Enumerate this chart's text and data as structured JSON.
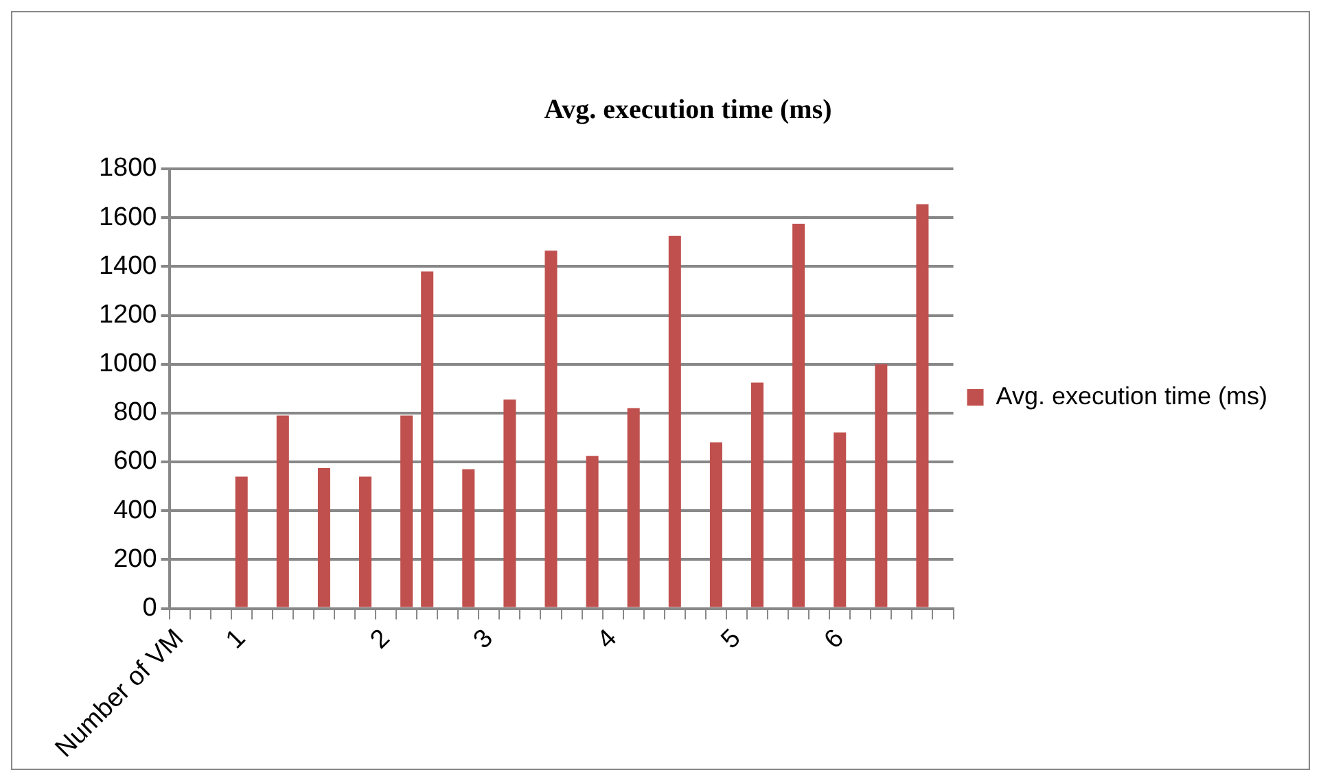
{
  "chart_data": {
    "type": "bar",
    "title": "Avg. execution time (ms)",
    "categories": [
      "Number of VM",
      null,
      null,
      "1",
      null,
      null,
      null,
      null,
      null,
      null,
      "2",
      null,
      null,
      null,
      null,
      "3",
      null,
      null,
      null,
      null,
      null,
      "4",
      null,
      null,
      null,
      null,
      null,
      "5",
      null,
      null,
      null,
      null,
      "6",
      null,
      null,
      null,
      null,
      null
    ],
    "series": [
      {
        "name": "Avg. execution time (ms)",
        "color": "#c0504d",
        "values": [
          null,
          null,
          null,
          540,
          null,
          790,
          null,
          575,
          null,
          540,
          null,
          790,
          1380,
          null,
          570,
          null,
          855,
          null,
          1465,
          null,
          625,
          null,
          820,
          null,
          1525,
          null,
          680,
          null,
          925,
          null,
          1575,
          null,
          720,
          null,
          1000,
          null,
          1655,
          null
        ]
      }
    ],
    "ylim": [
      0,
      1800
    ],
    "yticks": [
      0,
      200,
      400,
      600,
      800,
      1000,
      1200,
      1400,
      1600,
      1800
    ],
    "grid": "y",
    "legend": "right"
  }
}
